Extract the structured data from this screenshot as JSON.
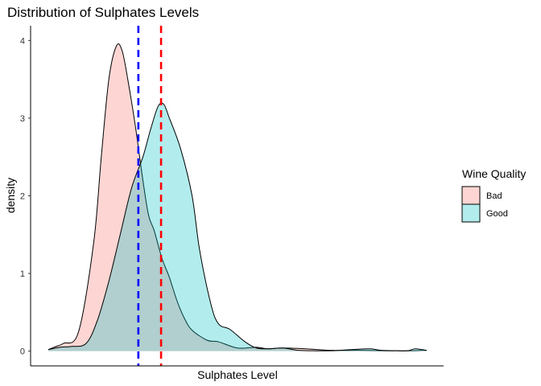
{
  "chart_data": {
    "type": "area",
    "title": "Distribution of Sulphates Levels",
    "xlabel": "Sulphates Level",
    "ylabel": "density",
    "xlim": [
      0,
      100
    ],
    "ylim": [
      -0.19,
      4.19
    ],
    "y_ticks": [
      "0",
      "1",
      "2",
      "3",
      "4"
    ],
    "grid": false,
    "legend": {
      "title": "Wine Quality",
      "placement": "right",
      "entries": [
        "Bad",
        "Good"
      ]
    },
    "series": [
      {
        "name": "Bad",
        "fill": "#F8766D",
        "x": [
          0,
          2,
          4,
          8,
          12,
          14,
          16,
          18,
          19.5,
          21,
          23,
          25,
          26.5,
          28,
          30,
          32,
          34,
          36,
          38,
          42,
          45,
          50,
          55,
          58,
          62,
          68,
          75,
          82,
          88,
          92,
          96,
          99,
          100
        ],
        "y": [
          0.02,
          0.06,
          0.1,
          0.25,
          1.4,
          2.5,
          3.5,
          3.93,
          3.87,
          3.5,
          2.9,
          2.2,
          1.75,
          1.55,
          1.2,
          0.95,
          0.65,
          0.42,
          0.27,
          0.14,
          0.12,
          0.04,
          0.05,
          0.03,
          0.04,
          0.03,
          0.01,
          0.01,
          0.005,
          0.005,
          0.005,
          0.01,
          0.01
        ]
      },
      {
        "name": "Good",
        "fill": "#00BFC4",
        "x": [
          0,
          3,
          6,
          10,
          13,
          16,
          19,
          22,
          25,
          27,
          29,
          30.5,
          32,
          35,
          38,
          40,
          43,
          45,
          48,
          52,
          55,
          58,
          62,
          66,
          70,
          75,
          80,
          85,
          88,
          92,
          95,
          97,
          100
        ],
        "y": [
          0.02,
          0.05,
          0.06,
          0.1,
          0.4,
          0.9,
          1.5,
          2.1,
          2.5,
          2.85,
          3.15,
          3.18,
          3.0,
          2.6,
          2.0,
          1.3,
          0.6,
          0.35,
          0.28,
          0.12,
          0.04,
          0.03,
          0.04,
          0.01,
          0.005,
          0.005,
          0.02,
          0.03,
          0.01,
          0.005,
          0.005,
          0.03,
          0.01
        ]
      }
    ],
    "vlines": [
      {
        "x": 23.8,
        "color": "#0000FF",
        "style": "dashed"
      },
      {
        "x": 29.8,
        "color": "#FF0000",
        "style": "dashed"
      }
    ]
  }
}
